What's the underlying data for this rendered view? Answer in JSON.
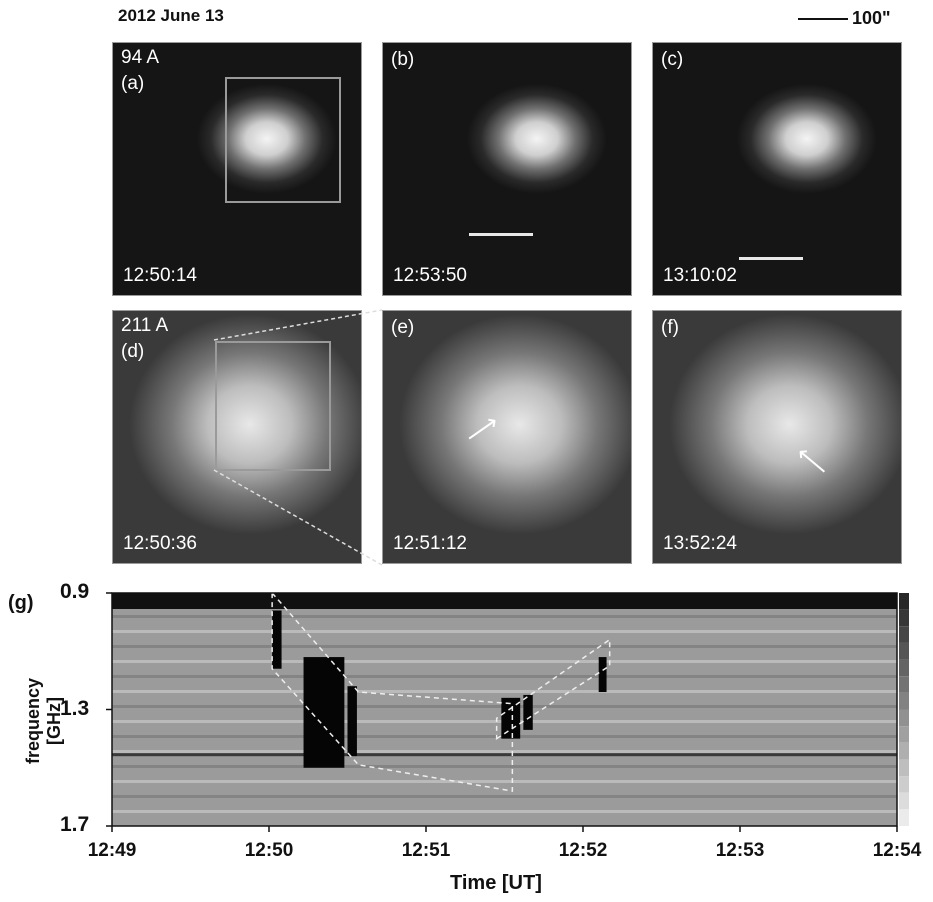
{
  "figure": {
    "date": "2012 June 13",
    "scale_label": "100\"",
    "panels": [
      {
        "id": "a",
        "label": "(a)",
        "channel": "94 A",
        "time": "12:50:14"
      },
      {
        "id": "b",
        "label": "(b)",
        "channel": "",
        "time": "12:53:50"
      },
      {
        "id": "c",
        "label": "(c)",
        "channel": "",
        "time": "13:10:02"
      },
      {
        "id": "d",
        "label": "(d)",
        "channel": "211 A",
        "time": "12:50:36"
      },
      {
        "id": "e",
        "label": "(e)",
        "channel": "",
        "time": "12:51:12"
      },
      {
        "id": "f",
        "label": "(f)",
        "channel": "",
        "time": "13:52:24"
      }
    ]
  },
  "chart_data": {
    "type": "heatmap",
    "panel_label": "(g)",
    "xlabel": "Time [UT]",
    "ylabel": "frequency [GHz]",
    "x_ticks": [
      "12:49",
      "12:50",
      "12:51",
      "12:52",
      "12:53",
      "12:54"
    ],
    "y_ticks": [
      "0.9",
      "1.3",
      "1.7"
    ],
    "xlim_minutes": [
      0,
      5
    ],
    "ylim_ghz": [
      0.9,
      1.7
    ],
    "y_inverted": true,
    "bursts": [
      {
        "t_start": 1.02,
        "t_end": 1.08,
        "f_low": 0.96,
        "f_high": 1.16
      },
      {
        "t_start": 1.22,
        "t_end": 1.48,
        "f_low": 1.12,
        "f_high": 1.5
      },
      {
        "t_start": 1.5,
        "t_end": 1.56,
        "f_low": 1.22,
        "f_high": 1.46
      },
      {
        "t_start": 2.48,
        "t_end": 2.6,
        "f_low": 1.26,
        "f_high": 1.4
      },
      {
        "t_start": 2.62,
        "t_end": 2.68,
        "f_low": 1.25,
        "f_high": 1.37
      },
      {
        "t_start": 3.1,
        "t_end": 3.15,
        "f_low": 1.12,
        "f_high": 1.24
      }
    ]
  }
}
